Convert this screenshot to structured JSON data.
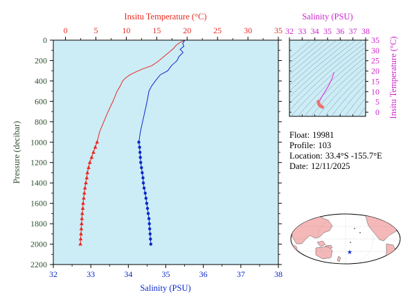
{
  "chart_data": [
    {
      "type": "line",
      "ylabel": "Pressure (decibar)",
      "ylim": [
        2200,
        0
      ],
      "yticks": [
        0,
        200,
        400,
        600,
        800,
        1000,
        1200,
        1400,
        1600,
        1800,
        2000,
        2200
      ],
      "x_top": {
        "label": "Insitu Temperature (°C)",
        "lim": [
          -2,
          35
        ],
        "ticks": [
          0,
          5,
          10,
          15,
          20,
          25,
          30,
          35
        ]
      },
      "x_bottom": {
        "label": "Salinity (PSU)",
        "lim": [
          32,
          38
        ],
        "ticks": [
          32,
          33,
          34,
          35,
          36,
          37,
          38
        ]
      },
      "series": [
        {
          "color": "#e8281e",
          "axis": "top",
          "marker": "triangle",
          "points": [
            [
              19.5,
              5
            ],
            [
              18.9,
              20
            ],
            [
              18.2,
              50
            ],
            [
              17.8,
              80
            ],
            [
              17.0,
              120
            ],
            [
              16.0,
              170
            ],
            [
              15.2,
              210
            ],
            [
              14.2,
              250
            ],
            [
              12.8,
              280
            ],
            [
              11.6,
              310
            ],
            [
              10.6,
              340
            ],
            [
              9.9,
              370
            ],
            [
              9.4,
              400
            ],
            [
              9.0,
              450
            ],
            [
              8.5,
              500
            ],
            [
              7.8,
              600
            ],
            [
              7.0,
              700
            ],
            [
              6.3,
              800
            ],
            [
              5.6,
              900
            ]
          ],
          "marked_points": [
            [
              5.2,
              1000
            ],
            [
              4.9,
              1050
            ],
            [
              4.6,
              1100
            ],
            [
              4.3,
              1150
            ],
            [
              4.0,
              1200
            ],
            [
              3.8,
              1250
            ],
            [
              3.6,
              1300
            ],
            [
              3.5,
              1350
            ],
            [
              3.35,
              1400
            ],
            [
              3.2,
              1450
            ],
            [
              3.1,
              1500
            ],
            [
              3.0,
              1550
            ],
            [
              2.9,
              1600
            ],
            [
              2.85,
              1650
            ],
            [
              2.75,
              1700
            ],
            [
              2.7,
              1750
            ],
            [
              2.65,
              1800
            ],
            [
              2.6,
              1850
            ],
            [
              2.55,
              1900
            ],
            [
              2.5,
              1950
            ],
            [
              2.45,
              2000
            ]
          ]
        },
        {
          "color": "#0a28c8",
          "axis": "bottom",
          "marker": "circle",
          "points": [
            [
              35.5,
              5
            ],
            [
              35.45,
              30
            ],
            [
              35.48,
              60
            ],
            [
              35.38,
              90
            ],
            [
              35.46,
              120
            ],
            [
              35.35,
              160
            ],
            [
              35.3,
              200
            ],
            [
              35.15,
              250
            ],
            [
              35.05,
              300
            ],
            [
              34.85,
              340
            ],
            [
              34.72,
              400
            ],
            [
              34.62,
              450
            ],
            [
              34.55,
              500
            ],
            [
              34.5,
              600
            ],
            [
              34.44,
              700
            ],
            [
              34.38,
              800
            ],
            [
              34.32,
              900
            ]
          ],
          "marked_points": [
            [
              34.28,
              1000
            ],
            [
              34.3,
              1050
            ],
            [
              34.31,
              1100
            ],
            [
              34.32,
              1150
            ],
            [
              34.33,
              1200
            ],
            [
              34.35,
              1250
            ],
            [
              34.37,
              1300
            ],
            [
              34.39,
              1350
            ],
            [
              34.4,
              1400
            ],
            [
              34.42,
              1450
            ],
            [
              34.45,
              1500
            ],
            [
              34.47,
              1550
            ],
            [
              34.49,
              1600
            ],
            [
              34.51,
              1650
            ],
            [
              34.53,
              1700
            ],
            [
              34.55,
              1750
            ],
            [
              34.56,
              1800
            ],
            [
              34.57,
              1850
            ],
            [
              34.58,
              1900
            ],
            [
              34.59,
              1950
            ],
            [
              34.6,
              2000
            ]
          ]
        }
      ]
    },
    {
      "type": "scatter",
      "xlabel": "Salinity (PSU)",
      "ylabel": "Insitu Temperature (°C)",
      "xlim": [
        32,
        38
      ],
      "ylim": [
        -2,
        35
      ],
      "xticks": [
        32,
        33,
        34,
        35,
        36,
        37,
        38
      ],
      "yticks": [
        0,
        5,
        10,
        15,
        20,
        25,
        30,
        35
      ],
      "line_color": "#e040e0",
      "marker_color": "#f07070",
      "points": [
        [
          35.5,
          19.5
        ],
        [
          35.4,
          17.0
        ],
        [
          35.25,
          15.0
        ],
        [
          35.05,
          12.5
        ],
        [
          34.85,
          10.5
        ],
        [
          34.7,
          9.0
        ],
        [
          34.55,
          7.5
        ],
        [
          34.45,
          6.3
        ],
        [
          34.38,
          5.6
        ]
      ],
      "marked_points": [
        [
          34.28,
          5.2
        ],
        [
          34.3,
          4.6
        ],
        [
          34.32,
          4.0
        ],
        [
          34.35,
          3.6
        ],
        [
          34.39,
          3.35
        ],
        [
          34.45,
          3.0
        ],
        [
          34.5,
          2.85
        ],
        [
          34.55,
          2.7
        ],
        [
          34.58,
          2.55
        ],
        [
          34.6,
          2.45
        ]
      ]
    }
  ],
  "info": {
    "float_label": "Float:",
    "float_value": "19981",
    "profile_label": "Profile:",
    "profile_value": "103",
    "location_label": "Location:",
    "location_value": "33.4°S  -155.7°E",
    "date_label": "Date:",
    "date_value": "12/11/2025"
  },
  "map": {
    "icon": "world-map-icon",
    "marker_icon": "star-icon",
    "land_color": "#f4b8b8",
    "ocean_color": "#ffffff",
    "marker_color": "#1030d0"
  },
  "colors": {
    "background": "#ccecf6",
    "temperature": "#e8281e",
    "salinity": "#0a28c8",
    "pressure_axis": "#2f4f2f",
    "ts_axis": "#cc22cc"
  }
}
